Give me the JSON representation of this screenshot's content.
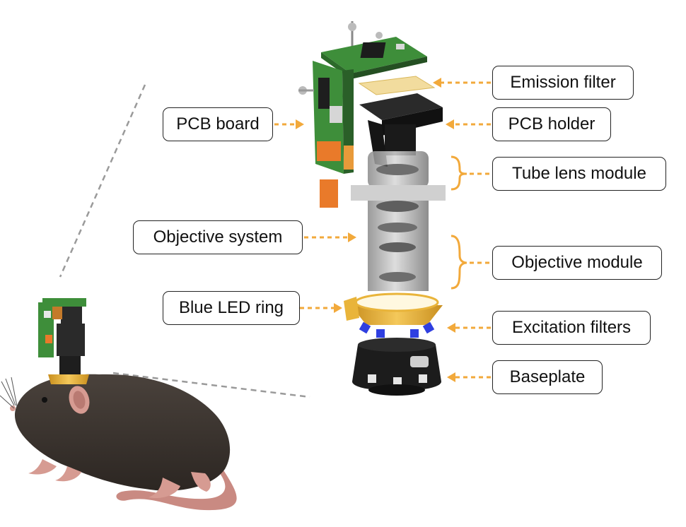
{
  "labels": {
    "pcb_board": "PCB board",
    "objective_system": "Objective system",
    "blue_led_ring": "Blue LED ring",
    "emission_filter": "Emission filter",
    "pcb_holder": "PCB holder",
    "tube_lens_module": "Tube lens module",
    "objective_module": "Objective module",
    "excitation_filters": "Excitation filters",
    "baseplate": "Baseplate"
  },
  "colors": {
    "arrow": "#F2A93B",
    "led_ring": "#E9B43A",
    "pcb_green": "#3E8E3A",
    "mouse_fur": "#3B342F",
    "mouse_skin": "#C98A82",
    "excitation_blue": "#2F3FE0"
  }
}
